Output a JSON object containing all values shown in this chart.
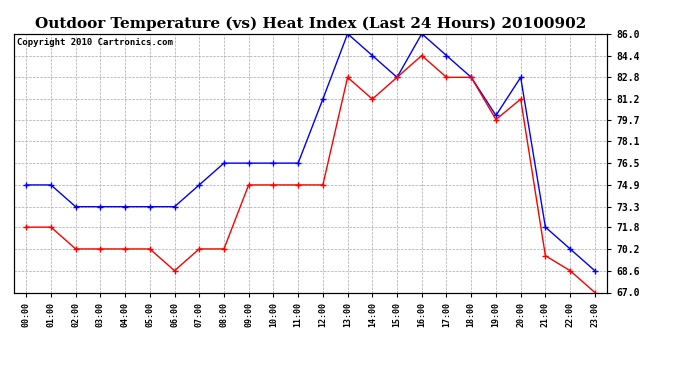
{
  "title": "Outdoor Temperature (vs) Heat Index (Last 24 Hours) 20100902",
  "copyright": "Copyright 2010 Cartronics.com",
  "hours": [
    "00:00",
    "01:00",
    "02:00",
    "03:00",
    "04:00",
    "05:00",
    "06:00",
    "07:00",
    "08:00",
    "09:00",
    "10:00",
    "11:00",
    "12:00",
    "13:00",
    "14:00",
    "15:00",
    "16:00",
    "17:00",
    "18:00",
    "19:00",
    "20:00",
    "21:00",
    "22:00",
    "23:00"
  ],
  "blue_heat_index": [
    74.9,
    74.9,
    73.3,
    73.3,
    73.3,
    73.3,
    73.3,
    74.9,
    76.5,
    76.5,
    76.5,
    76.5,
    81.2,
    86.0,
    84.4,
    82.8,
    86.0,
    84.4,
    82.8,
    80.0,
    82.8,
    71.8,
    70.2,
    68.6
  ],
  "red_outdoor_temp": [
    71.8,
    71.8,
    70.2,
    70.2,
    70.2,
    70.2,
    68.6,
    70.2,
    70.2,
    74.9,
    74.9,
    74.9,
    74.9,
    82.8,
    81.2,
    82.8,
    84.4,
    82.8,
    82.8,
    79.7,
    81.2,
    69.7,
    68.6,
    67.0
  ],
  "blue_color": "#0000ff",
  "red_color": "#ff0000",
  "background_color": "#ffffff",
  "grid_color": "#aaaaaa",
  "ylim_min": 67.0,
  "ylim_max": 86.0,
  "yticks": [
    67.0,
    68.6,
    70.2,
    71.8,
    73.3,
    74.9,
    76.5,
    78.1,
    79.7,
    81.2,
    82.8,
    84.4,
    86.0
  ],
  "title_fontsize": 11,
  "copyright_fontsize": 6.5
}
